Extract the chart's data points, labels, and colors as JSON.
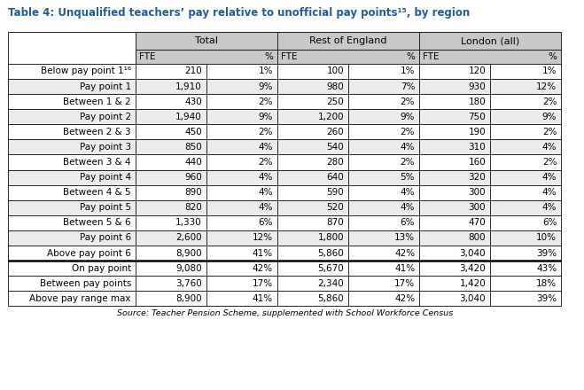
{
  "title": "Table 4: Unqualified teachers’ pay relative to unofficial pay points¹⁵, by region",
  "title_color": "#1F5C99",
  "source": "Source: Teacher Pension Scheme, supplemented with School Workforce Census",
  "col_groups": [
    "Total",
    "Rest of England",
    "London (all)"
  ],
  "col_subheaders": [
    "FTE",
    "%",
    "FTE",
    "%",
    "FTE",
    "%"
  ],
  "row_labels": [
    "Below pay point 1¹⁶",
    "Pay point 1",
    "Between 1 & 2",
    "Pay point 2",
    "Between 2 & 3",
    "Pay point 3",
    "Between 3 & 4",
    "Pay point 4",
    "Between 4 & 5",
    "Pay point 5",
    "Between 5 & 6",
    "Pay point 6",
    "Above pay point 6"
  ],
  "summary_row_labels": [
    "On pay point",
    "Between pay points",
    "Above pay range max"
  ],
  "data_rows": [
    [
      "210",
      "1%",
      "100",
      "1%",
      "120",
      "1%"
    ],
    [
      "1,910",
      "9%",
      "980",
      "7%",
      "930",
      "12%"
    ],
    [
      "430",
      "2%",
      "250",
      "2%",
      "180",
      "2%"
    ],
    [
      "1,940",
      "9%",
      "1,200",
      "9%",
      "750",
      "9%"
    ],
    [
      "450",
      "2%",
      "260",
      "2%",
      "190",
      "2%"
    ],
    [
      "850",
      "4%",
      "540",
      "4%",
      "310",
      "4%"
    ],
    [
      "440",
      "2%",
      "280",
      "2%",
      "160",
      "2%"
    ],
    [
      "960",
      "4%",
      "640",
      "5%",
      "320",
      "4%"
    ],
    [
      "890",
      "4%",
      "590",
      "4%",
      "300",
      "4%"
    ],
    [
      "820",
      "4%",
      "520",
      "4%",
      "300",
      "4%"
    ],
    [
      "1,330",
      "6%",
      "870",
      "6%",
      "470",
      "6%"
    ],
    [
      "2,600",
      "12%",
      "1,800",
      "13%",
      "800",
      "10%"
    ],
    [
      "8,900",
      "41%",
      "5,860",
      "42%",
      "3,040",
      "39%"
    ]
  ],
  "summary_rows": [
    [
      "9,080",
      "42%",
      "5,670",
      "41%",
      "3,420",
      "43%"
    ],
    [
      "3,760",
      "17%",
      "2,340",
      "17%",
      "1,420",
      "18%"
    ],
    [
      "8,900",
      "41%",
      "5,860",
      "42%",
      "3,040",
      "39%"
    ]
  ],
  "bg_white": "#FFFFFF",
  "bg_gray": "#EBEBEB",
  "bg_header_gray": "#C8C8C8",
  "text_color": "#000000",
  "figsize": [
    6.59,
    4.4
  ],
  "dpi": 100
}
